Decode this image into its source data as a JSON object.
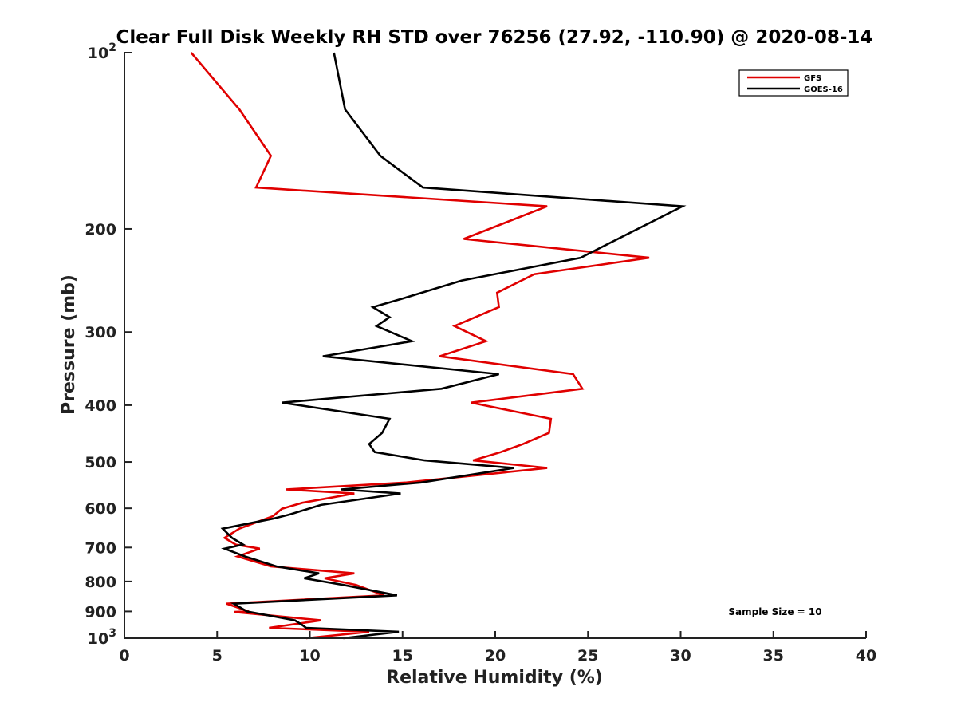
{
  "chart_data": {
    "type": "line",
    "title": "Clear Full Disk Weekly RH STD over 76256 (27.92, -110.90) @ 2020-08-14",
    "xlabel": "Relative Humidity (%)",
    "ylabel": "Pressure (mb)",
    "xlim": [
      0,
      40
    ],
    "ylim": [
      100,
      1000
    ],
    "y_scale": "log",
    "y_reversed": true,
    "x_ticks": [
      "0",
      "5",
      "10",
      "15",
      "20",
      "25",
      "30",
      "35",
      "40"
    ],
    "y_ticks": [
      {
        "value": 100,
        "base": "10",
        "exp": "2"
      },
      {
        "value": 200,
        "label": "200"
      },
      {
        "value": 300,
        "label": "300"
      },
      {
        "value": 400,
        "label": "400"
      },
      {
        "value": 500,
        "label": "500"
      },
      {
        "value": 600,
        "label": "600"
      },
      {
        "value": 700,
        "label": "700"
      },
      {
        "value": 800,
        "label": "800"
      },
      {
        "value": 900,
        "label": "900"
      },
      {
        "value": 1000,
        "base": "10",
        "exp": "3"
      }
    ],
    "legend_position": "top-right",
    "annotation": "Sample Size = 10",
    "series": [
      {
        "name": "GFS",
        "color": "#e00000",
        "rh": [
          3.6,
          6.2,
          7.9,
          7.1,
          22.8,
          18.3,
          28.3,
          22.1,
          20.1,
          20.2,
          17.8,
          19.5,
          17.0,
          24.2,
          24.7,
          18.7,
          23.0,
          22.9,
          21.5,
          20.3,
          18.8,
          22.8,
          15.2,
          8.7,
          12.4,
          9.6,
          8.5,
          8.0,
          6.2,
          5.4,
          6.0,
          7.3,
          6.1,
          7.9,
          12.4,
          10.8,
          12.5,
          14.0,
          5.5,
          6.7,
          5.9,
          10.6,
          7.8,
          13.2,
          9.8
        ],
        "pressure": [
          100,
          125,
          150,
          170,
          183,
          208,
          224,
          239,
          257,
          272,
          293,
          311,
          330,
          354,
          375,
          396,
          422,
          446,
          466,
          481,
          497,
          512,
          542,
          557,
          566,
          587,
          601,
          619,
          650,
          674,
          692,
          703,
          725,
          754,
          775,
          790,
          811,
          845,
          873,
          900,
          902,
          932,
          960,
          975,
          1000
        ]
      },
      {
        "name": "GOES-16",
        "color": "#000000",
        "rh": [
          11.3,
          11.9,
          13.8,
          16.1,
          30.1,
          24.6,
          18.2,
          15.0,
          13.4,
          14.3,
          13.6,
          15.5,
          10.7,
          20.2,
          17.1,
          8.5,
          14.3,
          13.9,
          13.2,
          13.5,
          16.2,
          21.0,
          16.0,
          11.7,
          14.9,
          10.6,
          8.9,
          8.0,
          5.3,
          5.8,
          6.4,
          5.4,
          6.5,
          8.2,
          10.5,
          9.7,
          11.8,
          14.7,
          5.9,
          6.6,
          9.2,
          9.6,
          9.8,
          14.8,
          11.8
        ],
        "pressure": [
          100,
          125,
          150,
          170,
          183,
          224,
          245,
          263,
          272,
          283,
          293,
          311,
          330,
          354,
          375,
          396,
          422,
          446,
          466,
          481,
          497,
          512,
          542,
          557,
          566,
          592,
          615,
          625,
          650,
          674,
          692,
          703,
          725,
          754,
          775,
          790,
          811,
          845,
          873,
          900,
          932,
          950,
          960,
          975,
          1000
        ]
      }
    ]
  }
}
